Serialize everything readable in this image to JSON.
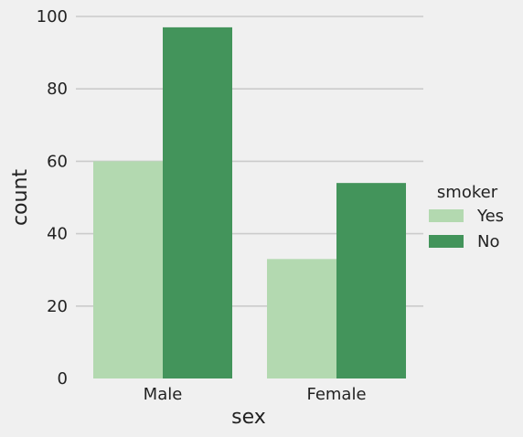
{
  "chart_data": {
    "type": "bar",
    "categories": [
      "Male",
      "Female"
    ],
    "series": [
      {
        "name": "Yes",
        "values": [
          60,
          33
        ],
        "color": "#b3d9b0"
      },
      {
        "name": "No",
        "values": [
          97,
          54
        ],
        "color": "#43945b"
      }
    ],
    "xlabel": "sex",
    "ylabel": "count",
    "ylim": [
      0,
      100
    ],
    "yticks": [
      0,
      20,
      40,
      60,
      80,
      100
    ],
    "grid": "horizontal",
    "legend": {
      "title": "smoker",
      "placement": "right"
    },
    "background": "#f0f0f0",
    "grid_color": "#cbcbcb"
  }
}
